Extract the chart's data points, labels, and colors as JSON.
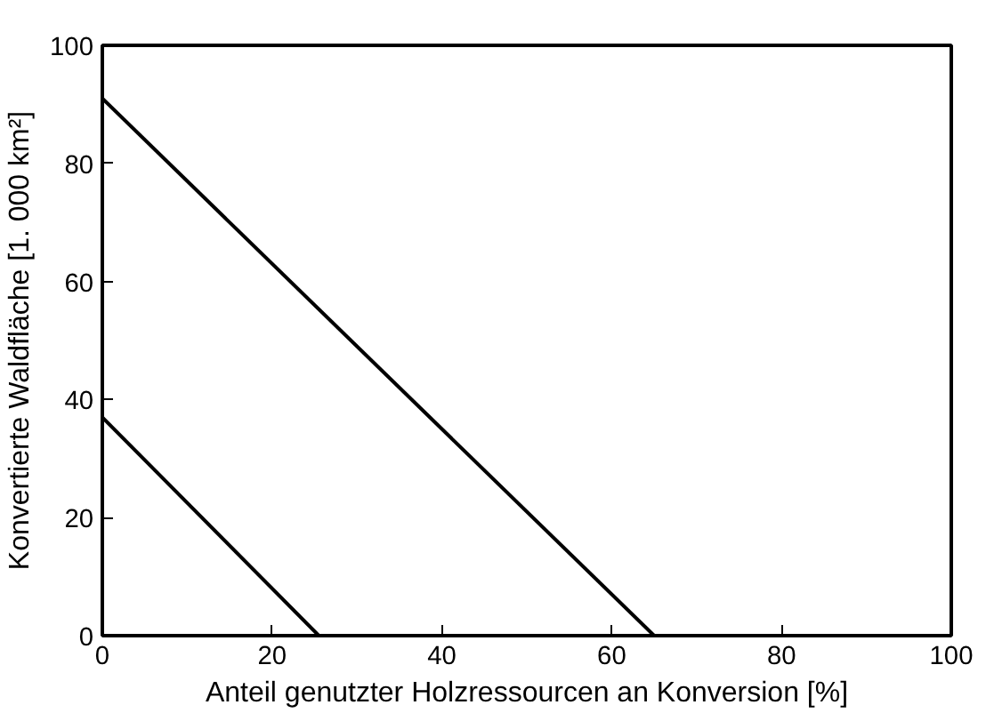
{
  "chart_data": {
    "type": "line",
    "xlabel": "Anteil genutzter Holzressourcen an Konversion [%]",
    "ylabel": "Konvertierte Waldfläche [1. 000 km²]",
    "series": [
      {
        "color": "#000000",
        "x": [
          0,
          65
        ],
        "values": [
          91,
          0
        ]
      },
      {
        "color": "#000000",
        "x": [
          0,
          25.5
        ],
        "values": [
          37,
          0
        ]
      }
    ],
    "xlim": [
      0,
      100
    ],
    "ylim": [
      0,
      100
    ],
    "xticks": [
      0,
      20,
      40,
      60,
      80,
      100
    ],
    "yticks": [
      0,
      20,
      40,
      60,
      80,
      100
    ],
    "grid": false,
    "marker": "none",
    "line_style": "solid"
  }
}
